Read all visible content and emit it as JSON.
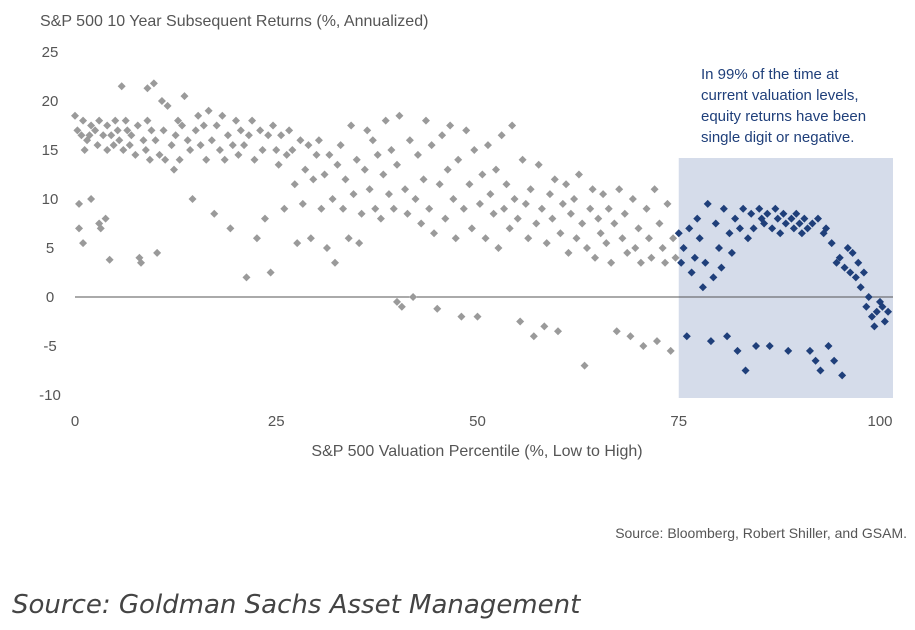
{
  "chart_data": {
    "type": "scatter",
    "title": "S&P 500 10 Year Subsequent Returns (%, Annualized)",
    "xlabel": "S&P 500 Valuation Percentile (%, Low to High)",
    "ylabel": "",
    "xlim": [
      0,
      100
    ],
    "ylim": [
      -10,
      25
    ],
    "xticks": [
      "0",
      "25",
      "50",
      "75",
      "100"
    ],
    "yticks": [
      "25",
      "20",
      "15",
      "10",
      "5",
      "0",
      "-5",
      "-10"
    ],
    "highlight_region": {
      "x": [
        75,
        100
      ],
      "color": "#d5dcea"
    },
    "annotation": [
      "In 99% of the time at",
      "current valuation levels,",
      "equity returns have been",
      "single digit or negative."
    ],
    "colors": {
      "below_75": "#9a9a9a",
      "above_75": "#1f3f7a"
    },
    "series": [
      {
        "values": [
          [
            0,
            18.5
          ],
          [
            0.3,
            17
          ],
          [
            0.5,
            9.5
          ],
          [
            0.5,
            7
          ],
          [
            0.8,
            16.5
          ],
          [
            1,
            5.5
          ],
          [
            1,
            18
          ],
          [
            1.2,
            15
          ],
          [
            1.5,
            16
          ],
          [
            1.8,
            16.5
          ],
          [
            2,
            10
          ],
          [
            2,
            17.5
          ],
          [
            2.5,
            17
          ],
          [
            2.8,
            15.5
          ],
          [
            3,
            18
          ],
          [
            3,
            7.5
          ],
          [
            3.2,
            7
          ],
          [
            3.5,
            16.5
          ],
          [
            3.8,
            8
          ],
          [
            4,
            15
          ],
          [
            4,
            17.5
          ],
          [
            4.3,
            3.8
          ],
          [
            4.5,
            16.5
          ],
          [
            4.8,
            15.5
          ],
          [
            5,
            18
          ],
          [
            5.3,
            17
          ],
          [
            5.5,
            16
          ],
          [
            5.8,
            21.5
          ],
          [
            6,
            15
          ],
          [
            6.3,
            18
          ],
          [
            6.5,
            17
          ],
          [
            6.8,
            15.5
          ],
          [
            7,
            16.5
          ],
          [
            7.5,
            14.5
          ],
          [
            7.8,
            17.5
          ],
          [
            8,
            4
          ],
          [
            8.2,
            3.5
          ],
          [
            8.5,
            16
          ],
          [
            8.8,
            15
          ],
          [
            9,
            18
          ],
          [
            9,
            21.3
          ],
          [
            9.3,
            14
          ],
          [
            9.5,
            17
          ],
          [
            9.8,
            21.8
          ],
          [
            10,
            16
          ],
          [
            10.2,
            4.5
          ],
          [
            10.5,
            14.5
          ],
          [
            10.8,
            20
          ],
          [
            11,
            17
          ],
          [
            11.2,
            14
          ],
          [
            11.5,
            19.5
          ],
          [
            12,
            15.5
          ],
          [
            12.3,
            13
          ],
          [
            12.5,
            16.5
          ],
          [
            12.8,
            18
          ],
          [
            13,
            14
          ],
          [
            13.3,
            17.5
          ],
          [
            13.6,
            20.5
          ],
          [
            14,
            16
          ],
          [
            14.3,
            15
          ],
          [
            14.6,
            10
          ],
          [
            15,
            17
          ],
          [
            15.3,
            18.5
          ],
          [
            15.6,
            15.5
          ],
          [
            16,
            17.5
          ],
          [
            16.3,
            14
          ],
          [
            16.6,
            19
          ],
          [
            17,
            16
          ],
          [
            17.3,
            8.5
          ],
          [
            17.6,
            17.5
          ],
          [
            18,
            15
          ],
          [
            18.3,
            18.5
          ],
          [
            18.6,
            14
          ],
          [
            19,
            16.5
          ],
          [
            19.3,
            7
          ],
          [
            19.6,
            15.5
          ],
          [
            20,
            18
          ],
          [
            20.3,
            14.5
          ],
          [
            20.6,
            17
          ],
          [
            21,
            15.5
          ],
          [
            21.3,
            2
          ],
          [
            21.6,
            16.5
          ],
          [
            22,
            18
          ],
          [
            22.3,
            14
          ],
          [
            22.6,
            6
          ],
          [
            23,
            17
          ],
          [
            23.3,
            15
          ],
          [
            23.6,
            8
          ],
          [
            24,
            16.5
          ],
          [
            24.3,
            2.5
          ],
          [
            24.6,
            17.5
          ],
          [
            25,
            15
          ],
          [
            25.3,
            13.5
          ],
          [
            25.6,
            16.5
          ],
          [
            26,
            9
          ],
          [
            26.3,
            14.5
          ],
          [
            26.6,
            17
          ],
          [
            27,
            15
          ],
          [
            27.3,
            11.5
          ],
          [
            27.6,
            5.5
          ],
          [
            28,
            16
          ],
          [
            28.3,
            9.5
          ],
          [
            28.6,
            13
          ],
          [
            29,
            15.5
          ],
          [
            29.3,
            6
          ],
          [
            29.6,
            12
          ],
          [
            30,
            14.5
          ],
          [
            30.3,
            16
          ],
          [
            30.6,
            9
          ],
          [
            31,
            12.5
          ],
          [
            31.3,
            5
          ],
          [
            31.6,
            14.5
          ],
          [
            32,
            10
          ],
          [
            32.3,
            3.5
          ],
          [
            32.6,
            13.5
          ],
          [
            33,
            15.5
          ],
          [
            33.3,
            9
          ],
          [
            33.6,
            12
          ],
          [
            34,
            6
          ],
          [
            34.3,
            17.5
          ],
          [
            34.6,
            10.5
          ],
          [
            35,
            14
          ],
          [
            35.3,
            5.5
          ],
          [
            35.6,
            8.5
          ],
          [
            36,
            13
          ],
          [
            36.3,
            17
          ],
          [
            36.6,
            11
          ],
          [
            37,
            16
          ],
          [
            37.3,
            9
          ],
          [
            37.6,
            14.5
          ],
          [
            38,
            8
          ],
          [
            38.3,
            12.5
          ],
          [
            38.6,
            18
          ],
          [
            39,
            10.5
          ],
          [
            39.3,
            15
          ],
          [
            39.6,
            9
          ],
          [
            40,
            -0.5
          ],
          [
            40,
            13.5
          ],
          [
            40.3,
            18.5
          ],
          [
            40.6,
            -1
          ],
          [
            41,
            11
          ],
          [
            41.3,
            8.5
          ],
          [
            41.6,
            16
          ],
          [
            42,
            0
          ],
          [
            42.3,
            10
          ],
          [
            42.6,
            14.5
          ],
          [
            43,
            7.5
          ],
          [
            43.3,
            12
          ],
          [
            43.6,
            18
          ],
          [
            44,
            9
          ],
          [
            44.3,
            15.5
          ],
          [
            44.6,
            6.5
          ],
          [
            45,
            -1.2
          ],
          [
            45.3,
            11.5
          ],
          [
            45.6,
            16.5
          ],
          [
            46,
            8
          ],
          [
            46.3,
            13
          ],
          [
            46.6,
            17.5
          ],
          [
            47,
            10
          ],
          [
            47.3,
            6
          ],
          [
            47.6,
            14
          ],
          [
            48,
            -2
          ],
          [
            48.3,
            9
          ],
          [
            48.6,
            17
          ],
          [
            49,
            11.5
          ],
          [
            49.3,
            7
          ],
          [
            49.6,
            15
          ],
          [
            50,
            -2
          ],
          [
            50.3,
            9.5
          ],
          [
            50.6,
            12.5
          ],
          [
            51,
            6
          ],
          [
            51.3,
            15.5
          ],
          [
            51.6,
            10.5
          ],
          [
            52,
            8.5
          ],
          [
            52.3,
            13
          ],
          [
            52.6,
            5
          ],
          [
            53,
            16.5
          ],
          [
            53.3,
            9
          ],
          [
            53.6,
            11.5
          ],
          [
            54,
            7
          ],
          [
            54.3,
            17.5
          ],
          [
            54.6,
            10
          ],
          [
            55,
            8
          ],
          [
            55.3,
            -2.5
          ],
          [
            55.6,
            14
          ],
          [
            56,
            9.5
          ],
          [
            56.3,
            6
          ],
          [
            56.6,
            11
          ],
          [
            57,
            -4
          ],
          [
            57.3,
            7.5
          ],
          [
            57.6,
            13.5
          ],
          [
            58,
            9
          ],
          [
            58.3,
            -3
          ],
          [
            58.6,
            5.5
          ],
          [
            59,
            10.5
          ],
          [
            59.3,
            8
          ],
          [
            59.6,
            12
          ],
          [
            60,
            -3.5
          ],
          [
            60.3,
            6.5
          ],
          [
            60.6,
            9.5
          ],
          [
            61,
            11.5
          ],
          [
            61.3,
            4.5
          ],
          [
            61.6,
            8.5
          ],
          [
            62,
            10
          ],
          [
            62.3,
            6
          ],
          [
            62.6,
            12.5
          ],
          [
            63,
            7.5
          ],
          [
            63.3,
            -7
          ],
          [
            63.6,
            5
          ],
          [
            64,
            9
          ],
          [
            64.3,
            11
          ],
          [
            64.6,
            4
          ],
          [
            65,
            8
          ],
          [
            65.3,
            6.5
          ],
          [
            65.6,
            10.5
          ],
          [
            66,
            5.5
          ],
          [
            66.3,
            9
          ],
          [
            66.6,
            3.5
          ],
          [
            67,
            7.5
          ],
          [
            67.3,
            -3.5
          ],
          [
            67.6,
            11
          ],
          [
            68,
            6
          ],
          [
            68.3,
            8.5
          ],
          [
            68.6,
            4.5
          ],
          [
            69,
            -4
          ],
          [
            69.3,
            10
          ],
          [
            69.6,
            5
          ],
          [
            70,
            7
          ],
          [
            70.3,
            3.5
          ],
          [
            70.6,
            -5
          ],
          [
            71,
            9
          ],
          [
            71.3,
            6
          ],
          [
            71.6,
            4
          ],
          [
            72,
            11
          ],
          [
            72.3,
            -4.5
          ],
          [
            72.6,
            7.5
          ],
          [
            73,
            5
          ],
          [
            73.3,
            3.5
          ],
          [
            73.6,
            9.5
          ],
          [
            74,
            -5.5
          ],
          [
            74.3,
            6
          ],
          [
            74.6,
            4
          ]
        ]
      },
      {
        "values": [
          [
            75,
            6.5
          ],
          [
            75.3,
            3.5
          ],
          [
            75.6,
            5
          ],
          [
            76,
            -4
          ],
          [
            76.3,
            7
          ],
          [
            76.6,
            2.5
          ],
          [
            77,
            4
          ],
          [
            77.3,
            8
          ],
          [
            77.6,
            6
          ],
          [
            78,
            1
          ],
          [
            78.3,
            3.5
          ],
          [
            78.6,
            9.5
          ],
          [
            79,
            -4.5
          ],
          [
            79.3,
            2
          ],
          [
            79.6,
            7.5
          ],
          [
            80,
            5
          ],
          [
            80.3,
            3
          ],
          [
            80.6,
            9
          ],
          [
            81,
            -4
          ],
          [
            81.3,
            6.5
          ],
          [
            81.6,
            4.5
          ],
          [
            82,
            8
          ],
          [
            82.3,
            -5.5
          ],
          [
            82.6,
            7
          ],
          [
            83,
            9
          ],
          [
            83.3,
            -7.5
          ],
          [
            83.6,
            6
          ],
          [
            84,
            8.5
          ],
          [
            84.3,
            7
          ],
          [
            84.6,
            -5
          ],
          [
            85,
            9
          ],
          [
            85.3,
            8
          ],
          [
            85.6,
            7.5
          ],
          [
            86,
            8.5
          ],
          [
            86.3,
            -5
          ],
          [
            86.6,
            7
          ],
          [
            87,
            9
          ],
          [
            87.3,
            8
          ],
          [
            87.6,
            6.5
          ],
          [
            88,
            8.5
          ],
          [
            88.3,
            7.5
          ],
          [
            88.6,
            -5.5
          ],
          [
            89,
            8
          ],
          [
            89.3,
            7
          ],
          [
            89.6,
            8.5
          ],
          [
            90,
            7.5
          ],
          [
            90.3,
            6.5
          ],
          [
            90.6,
            8
          ],
          [
            91,
            7
          ],
          [
            91.3,
            -5.5
          ],
          [
            91.6,
            7.5
          ],
          [
            92,
            -6.5
          ],
          [
            92.3,
            8
          ],
          [
            92.6,
            -7.5
          ],
          [
            93,
            6.5
          ],
          [
            93.3,
            7
          ],
          [
            93.6,
            -5
          ],
          [
            94,
            5.5
          ],
          [
            94.3,
            -6.5
          ],
          [
            94.6,
            3.5
          ],
          [
            95,
            4
          ],
          [
            95.3,
            -8
          ],
          [
            95.6,
            3
          ],
          [
            96,
            5
          ],
          [
            96.3,
            2.5
          ],
          [
            96.6,
            4.5
          ],
          [
            97,
            2
          ],
          [
            97.3,
            3.5
          ],
          [
            97.6,
            1
          ],
          [
            98,
            2.5
          ],
          [
            98.3,
            -1
          ],
          [
            98.6,
            0
          ],
          [
            99,
            -2
          ],
          [
            99.3,
            -3
          ],
          [
            99.6,
            -1.5
          ],
          [
            100,
            -0.5
          ],
          [
            100.3,
            -1
          ],
          [
            100.6,
            -2.5
          ],
          [
            101,
            -1.5
          ]
        ]
      }
    ]
  },
  "source_note": "Source: Bloomberg, Robert Shiller, and GSAM.",
  "caption": "Source: Goldman Sachs Asset Management"
}
